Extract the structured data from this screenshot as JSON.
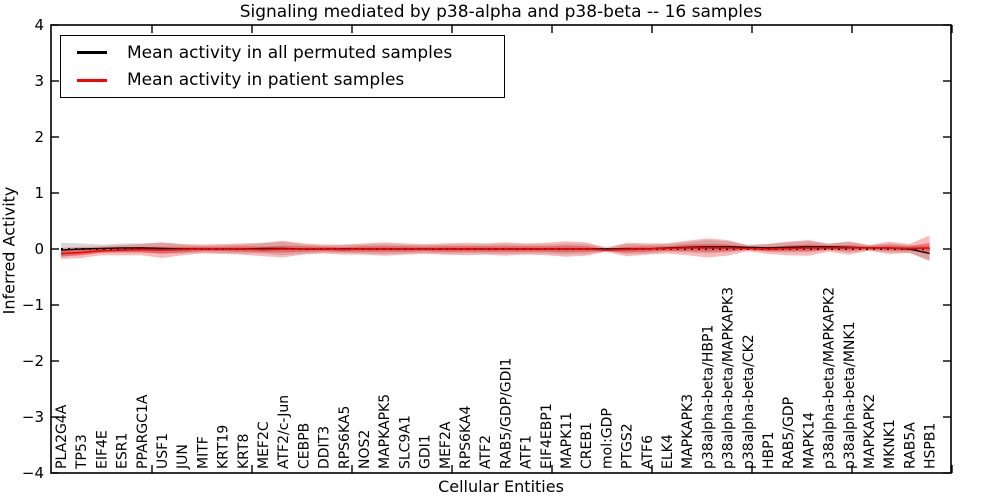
{
  "title": "Signaling mediated by p38-alpha and p38-beta -- 16 samples",
  "chart_data": {
    "type": "line",
    "title": "Signaling mediated by p38-alpha and p38-beta -- 16 samples",
    "xlabel": "Cellular Entities",
    "ylabel": "Inferred Activity",
    "ylim": [
      -4,
      4
    ],
    "yticks": [
      4,
      3,
      2,
      1,
      0,
      -1,
      -2,
      -3,
      -4
    ],
    "ytick_labels": [
      "4",
      "3",
      "2",
      "1",
      "0",
      "−1",
      "−2",
      "−3",
      "−4"
    ],
    "grid": false,
    "legend_position": "upper left",
    "zero_reference_line": {
      "style": "dotted",
      "color": "#000000",
      "y": 0
    },
    "categories": [
      "PLA2G4A",
      "TP53",
      "EIF4E",
      "ESR1",
      "PPARGC1A",
      "USF1",
      "JUN",
      "MITF",
      "KRT19",
      "KRT8",
      "MEF2C",
      "ATF2/c-Jun",
      "CEBPB",
      "DDIT3",
      "RPS6KA5",
      "NOS2",
      "MAPKAPK5",
      "SLC9A1",
      "GDI1",
      "MEF2A",
      "RPS6KA4",
      "ATF2",
      "RAB5/GDP/GDI1",
      "ATF1",
      "EIF4EBP1",
      "MAPK11",
      "CREB1",
      "mol:GDP",
      "PTGS2",
      "ATF6",
      "ELK4",
      "MAPKAPK3",
      "p38alpha-beta/HBP1",
      "p38alpha-beta/MAPKAPK3",
      "p38alpha-beta/CK2",
      "HBP1",
      "RAB5/GDP",
      "MAPK14",
      "p38alpha-beta/MAPKAPK2",
      "p38alpha-beta/MNK1",
      "MAPKAPK2",
      "MKNK1",
      "RAB5A",
      "HSPB1"
    ],
    "series": [
      {
        "name": "Mean activity in all permuted samples",
        "color": "#000000",
        "band_color": "rgba(100,100,100,0.25)",
        "values": [
          -0.02,
          0.0,
          0.01,
          0.02,
          0.02,
          0.01,
          0.0,
          0.0,
          0.0,
          0.0,
          0.01,
          0.01,
          0.0,
          0.0,
          0.0,
          0.0,
          0.0,
          0.0,
          0.0,
          0.0,
          0.0,
          0.0,
          0.0,
          0.0,
          0.0,
          0.0,
          0.0,
          0.0,
          0.0,
          0.0,
          0.02,
          0.03,
          0.04,
          0.04,
          0.03,
          0.02,
          0.03,
          0.04,
          0.04,
          0.03,
          0.02,
          0.02,
          0.0,
          -0.08
        ],
        "band": [
          0.13,
          0.1,
          0.07,
          0.08,
          0.08,
          0.1,
          0.08,
          0.06,
          0.07,
          0.08,
          0.09,
          0.12,
          0.08,
          0.06,
          0.07,
          0.08,
          0.09,
          0.08,
          0.07,
          0.08,
          0.08,
          0.08,
          0.09,
          0.08,
          0.08,
          0.1,
          0.09,
          0.04,
          0.09,
          0.08,
          0.07,
          0.09,
          0.12,
          0.1,
          0.05,
          0.07,
          0.09,
          0.1,
          0.06,
          0.09,
          0.05,
          0.08,
          0.07,
          0.14
        ]
      },
      {
        "name": "Mean activity in patient samples",
        "color": "#ff0000",
        "band_color": "rgba(235,50,50,0.33)",
        "band_inner_color": "rgba(220,20,20,0.38)",
        "values": [
          -0.08,
          -0.06,
          -0.03,
          -0.02,
          -0.01,
          -0.02,
          -0.01,
          0.0,
          0.0,
          0.0,
          -0.01,
          0.0,
          0.0,
          0.0,
          -0.01,
          0.0,
          0.0,
          0.0,
          0.0,
          0.0,
          0.0,
          0.0,
          0.0,
          0.0,
          0.0,
          0.0,
          0.0,
          -0.02,
          -0.01,
          0.0,
          0.01,
          0.02,
          0.02,
          0.02,
          0.01,
          0.0,
          0.01,
          0.02,
          0.02,
          0.02,
          0.02,
          0.02,
          0.01,
          0.02
        ],
        "band": [
          0.1,
          0.1,
          0.08,
          0.09,
          0.1,
          0.14,
          0.1,
          0.08,
          0.09,
          0.1,
          0.12,
          0.15,
          0.1,
          0.08,
          0.09,
          0.1,
          0.12,
          0.1,
          0.09,
          0.1,
          0.11,
          0.1,
          0.12,
          0.1,
          0.11,
          0.14,
          0.12,
          0.03,
          0.12,
          0.1,
          0.09,
          0.13,
          0.17,
          0.14,
          0.05,
          0.09,
          0.12,
          0.14,
          0.07,
          0.12,
          0.05,
          0.11,
          0.08,
          0.22
        ],
        "band_inner": [
          0.05,
          0.05,
          0.04,
          0.04,
          0.05,
          0.06,
          0.05,
          0.04,
          0.04,
          0.05,
          0.05,
          0.06,
          0.05,
          0.04,
          0.04,
          0.05,
          0.05,
          0.05,
          0.04,
          0.05,
          0.05,
          0.05,
          0.05,
          0.05,
          0.05,
          0.06,
          0.05,
          0.02,
          0.05,
          0.05,
          0.04,
          0.06,
          0.07,
          0.06,
          0.03,
          0.04,
          0.05,
          0.06,
          0.04,
          0.05,
          0.03,
          0.05,
          0.04,
          0.09
        ]
      }
    ]
  }
}
